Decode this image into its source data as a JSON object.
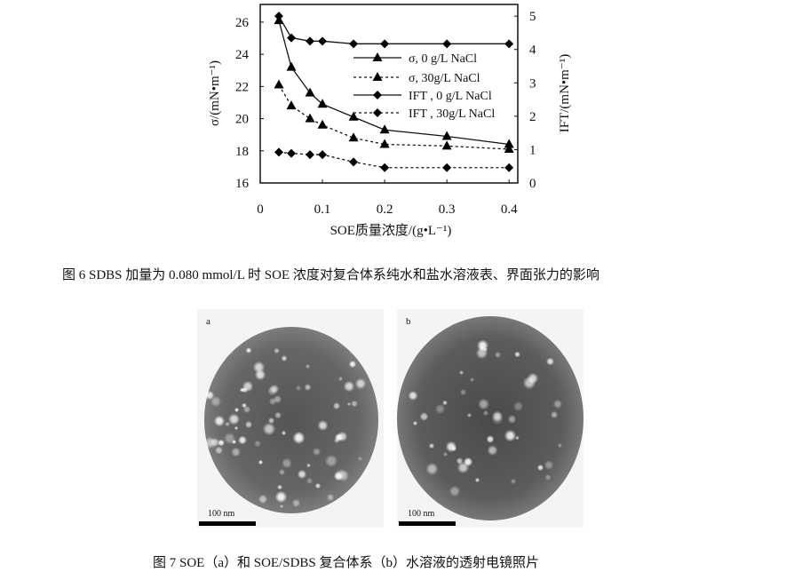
{
  "figure6": {
    "caption": "图 6   SDBS 加量为 0.080 mmol/L 时 SOE 浓度对复合体系纯水和盐水溶液表、界面张力的影响",
    "chart_data": {
      "type": "line",
      "xlabel": "SOE质量浓度/(g•L⁻¹)",
      "ylabel": "σ/(mN•m⁻¹)",
      "y2label": "IFT/(mN•m⁻¹)",
      "xlim": [
        0,
        0.414
      ],
      "ylim": [
        16,
        27.1
      ],
      "y2lim": [
        0,
        5.35
      ],
      "xticks": [
        "0",
        "0.1",
        "0.2",
        "0.3",
        "0.4"
      ],
      "yticks": [
        "16",
        "18",
        "20",
        "22",
        "24",
        "26"
      ],
      "y2ticks": [
        "0",
        "1",
        "2",
        "3",
        "4",
        "5"
      ],
      "legend_position": "center-right",
      "x": [
        0.03,
        0.05,
        0.08,
        0.1,
        0.15,
        0.2,
        0.3,
        0.4
      ],
      "series": [
        {
          "name": "σ, 0 g/L NaCl",
          "axis": "left",
          "marker": "triangle",
          "line": "solid",
          "values": [
            26.1,
            23.2,
            21.6,
            20.9,
            20.1,
            19.3,
            18.9,
            18.4
          ]
        },
        {
          "name": "σ, 30g/L NaCl",
          "axis": "left",
          "marker": "triangle",
          "line": "dotted",
          "values": [
            22.1,
            20.8,
            20.0,
            19.6,
            18.8,
            18.4,
            18.3,
            18.1
          ]
        },
        {
          "name": "IFT , 0 g/L NaCl",
          "axis": "right",
          "marker": "diamond",
          "line": "solid",
          "values": [
            5.0,
            4.35,
            4.25,
            4.25,
            4.17,
            4.17,
            4.17,
            4.17
          ]
        },
        {
          "name": "IFT , 30g/L NaCl",
          "axis": "right",
          "marker": "diamond",
          "line": "dotted",
          "values": [
            0.92,
            0.89,
            0.85,
            0.85,
            0.63,
            0.46,
            0.46,
            0.46
          ]
        }
      ]
    }
  },
  "figure7": {
    "caption": "图 7   SOE（a）和 SOE/SDBS 复合体系（b）水溶液的透射电镜照片",
    "panels": [
      {
        "label": "a",
        "scale": "100 nm"
      },
      {
        "label": "b",
        "scale": "100 nm"
      }
    ]
  }
}
